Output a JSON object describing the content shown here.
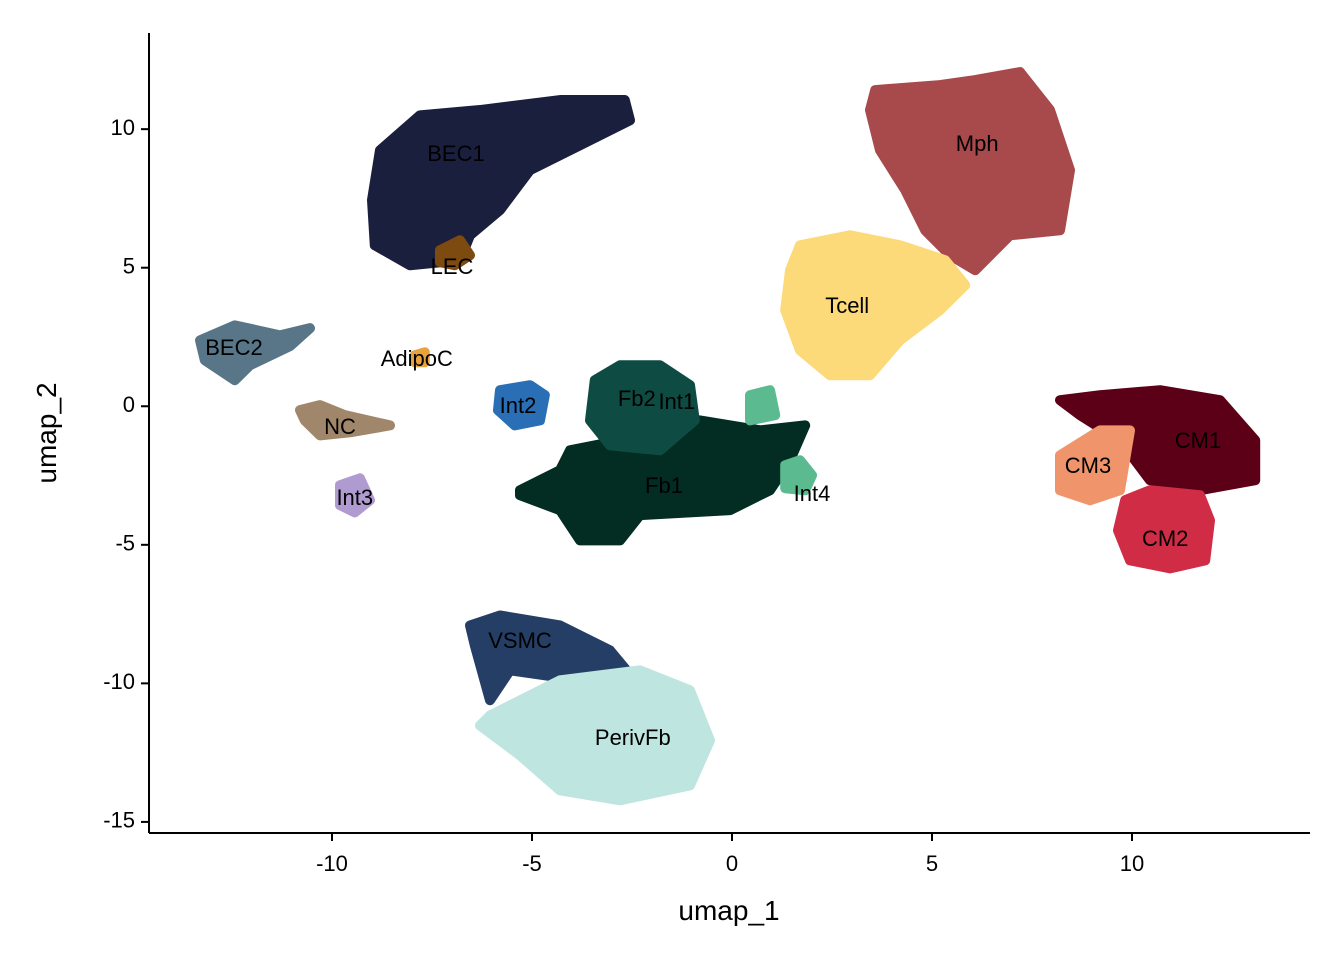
{
  "chart_data": {
    "type": "scatter",
    "xlabel": "umap_1",
    "ylabel": "umap_2",
    "xlim": [
      -14.575,
      14.45
    ],
    "ylim": [
      -15.4,
      13.47
    ],
    "xticks": [
      -10,
      -5,
      0,
      5,
      10
    ],
    "yticks": [
      -15,
      -10,
      -5,
      0,
      5,
      10
    ],
    "series": [
      {
        "name": "BEC1",
        "color": "#1b1f3e",
        "label_x": -6.9,
        "label_y": 9.06,
        "x": [
          -8.8,
          -7.8,
          -6.3,
          -4.3,
          -2.68,
          -2.55,
          -3.55,
          -5.05,
          -5.8,
          -6.55,
          -6.8,
          -8.05,
          -8.93,
          -9.0
        ],
        "y": [
          9.24,
          10.5,
          10.69,
          11.05,
          11.05,
          10.32,
          9.6,
          8.52,
          7.08,
          6.17,
          5.27,
          5.09,
          5.81,
          7.44
        ]
      },
      {
        "name": "Mph",
        "color": "#a8494b",
        "label_x": 6.13,
        "label_y": 9.42,
        "x": [
          3.58,
          5.2,
          6.08,
          7.2,
          7.95,
          8.45,
          8.2,
          6.95,
          6.08,
          5.45,
          4.83,
          4.33,
          3.7,
          3.45
        ],
        "y": [
          11.41,
          11.59,
          11.77,
          12.06,
          10.69,
          8.52,
          6.35,
          6.17,
          4.91,
          5.45,
          6.35,
          7.8,
          9.24,
          10.69
        ]
      },
      {
        "name": "Tcell",
        "color": "#fcda7a",
        "label_x": 2.88,
        "label_y": 3.57,
        "x": [
          1.7,
          2.95,
          4.2,
          5.33,
          5.83,
          5.2,
          4.2,
          3.45,
          2.45,
          1.7,
          1.33,
          1.45
        ],
        "y": [
          5.81,
          6.17,
          5.81,
          5.27,
          4.37,
          3.47,
          2.38,
          1.12,
          1.12,
          2.02,
          3.47,
          4.91
        ]
      },
      {
        "name": "CM1",
        "color": "#5c0017",
        "label_x": 11.65,
        "label_y": -1.3,
        "x": [
          8.2,
          9.2,
          10.7,
          12.2,
          13.08,
          13.08,
          11.7,
          10.45,
          9.7,
          8.7
        ],
        "y": [
          0.22,
          0.4,
          0.58,
          0.22,
          -1.23,
          -2.67,
          -3.03,
          -2.67,
          -1.23,
          -0.32
        ]
      },
      {
        "name": "CM2",
        "color": "#d02c45",
        "label_x": 10.83,
        "label_y": -4.84,
        "x": [
          9.83,
          10.45,
          11.7,
          11.95,
          11.83,
          10.95,
          9.95,
          9.65
        ],
        "y": [
          -3.39,
          -3.03,
          -3.21,
          -4.12,
          -5.56,
          -5.85,
          -5.56,
          -4.48
        ]
      },
      {
        "name": "CM3",
        "color": "#f0956b",
        "label_x": 8.9,
        "label_y": -2.2,
        "x": [
          8.2,
          9.2,
          9.95,
          9.7,
          8.95,
          8.2
        ],
        "y": [
          -1.77,
          -0.87,
          -0.87,
          -3.03,
          -3.39,
          -3.03
        ]
      },
      {
        "name": "Fb1",
        "color": "#032d23",
        "label_x": -1.7,
        "label_y": -2.92,
        "x": [
          -5.3,
          -4.3,
          -4.05,
          -2.8,
          -0.8,
          0.7,
          1.83,
          1.45,
          0.95,
          -0.05,
          -2.3,
          -2.8,
          -3.8,
          -4.3,
          -5.3
        ],
        "y": [
          -3.03,
          -2.31,
          -1.59,
          -1.23,
          -0.51,
          -0.87,
          -0.69,
          -1.95,
          -3.03,
          -3.75,
          -3.93,
          -4.84,
          -4.84,
          -3.75,
          -3.21
        ]
      },
      {
        "name": "Fb2",
        "color": "#0e4c43",
        "label_x": -2.38,
        "label_y": 0.22,
        "x": [
          -3.43,
          -2.8,
          -1.8,
          -1.05,
          -0.93,
          -1.8,
          -3.05,
          -3.55
        ],
        "y": [
          0.94,
          1.48,
          1.48,
          0.76,
          -0.51,
          -1.59,
          -1.41,
          -0.51
        ]
      },
      {
        "name": "Int1",
        "color": "#5cba90",
        "label_x": -1.38,
        "label_y": 0.11,
        "x": [
          0.45,
          0.95,
          1.08,
          0.45
        ],
        "y": [
          0.4,
          0.58,
          -0.32,
          -0.51
        ]
      },
      {
        "name": "Int4",
        "color": "#5cba90",
        "label_x": 2.0,
        "label_y": -3.21,
        "x": [
          1.33,
          1.7,
          2.0,
          1.83,
          1.33
        ],
        "y": [
          -2.13,
          -1.95,
          -2.49,
          -3.03,
          -2.96
        ]
      },
      {
        "name": "Int2",
        "color": "#2a6fb5",
        "label_x": -5.35,
        "label_y": -0.04,
        "x": [
          -5.8,
          -5.05,
          -4.68,
          -4.8,
          -5.43,
          -5.85
        ],
        "y": [
          0.58,
          0.76,
          0.4,
          -0.51,
          -0.69,
          -0.14
        ]
      },
      {
        "name": "Int3",
        "color": "#b09bd0",
        "label_x": -9.43,
        "label_y": -3.36,
        "x": [
          -9.8,
          -9.3,
          -9.05,
          -9.43,
          -9.8
        ],
        "y": [
          -2.85,
          -2.6,
          -3.39,
          -3.83,
          -3.57
        ]
      },
      {
        "name": "NC",
        "color": "#a0866a",
        "label_x": -9.8,
        "label_y": -0.79,
        "x": [
          -10.8,
          -10.3,
          -9.68,
          -8.55,
          -9.55,
          -10.3,
          -10.68
        ],
        "y": [
          -0.14,
          0.04,
          -0.32,
          -0.69,
          -0.94,
          -1.05,
          -0.51
        ]
      },
      {
        "name": "BEC2",
        "color": "#587688",
        "label_x": -12.45,
        "label_y": 2.06,
        "x": [
          -13.3,
          -12.43,
          -11.3,
          -10.55,
          -11.05,
          -12.05,
          -12.43,
          -13.18
        ],
        "y": [
          2.38,
          2.92,
          2.56,
          2.82,
          2.17,
          1.48,
          0.94,
          1.66
        ]
      },
      {
        "name": "AdipoC",
        "color": "#e8a33d",
        "label_x": -7.88,
        "label_y": 1.66,
        "x": [
          -7.93,
          -7.68,
          -7.68,
          -7.93
        ],
        "y": [
          1.84,
          1.95,
          1.59,
          1.59
        ]
      },
      {
        "name": "LEC",
        "color": "#7d4a0f",
        "label_x": -7.0,
        "label_y": 4.98,
        "x": [
          -7.3,
          -6.8,
          -6.55,
          -6.93,
          -7.3
        ],
        "y": [
          5.63,
          5.99,
          5.45,
          5.09,
          5.2
        ]
      },
      {
        "name": "VSMC",
        "color": "#253e65",
        "label_x": -5.3,
        "label_y": -8.52,
        "x": [
          -6.55,
          -5.8,
          -4.3,
          -3.05,
          -2.43,
          -3.8,
          -5.55,
          -6.05,
          -6.43
        ],
        "y": [
          -7.91,
          -7.55,
          -7.91,
          -8.81,
          -9.89,
          -9.89,
          -9.53,
          -10.61,
          -8.63
        ]
      },
      {
        "name": "PerivFb",
        "color": "#bfe5e0",
        "label_x": -2.48,
        "label_y": -12.02,
        "x": [
          -6.05,
          -4.3,
          -2.3,
          -1.05,
          -0.55,
          -1.05,
          -2.8,
          -4.3,
          -5.3,
          -6.3
        ],
        "y": [
          -11.16,
          -9.89,
          -9.53,
          -10.25,
          -12.06,
          -13.68,
          -14.22,
          -13.86,
          -12.6,
          -11.52
        ]
      }
    ]
  }
}
